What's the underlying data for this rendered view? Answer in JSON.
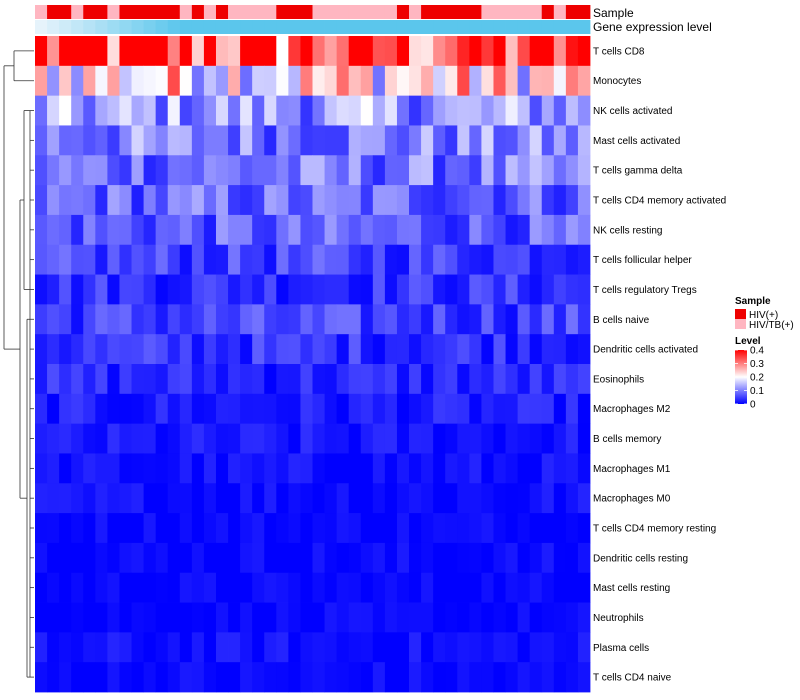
{
  "chart_data": {
    "type": "heatmap",
    "rows": [
      "T cells CD8",
      "Monocytes",
      "NK cells activated",
      "Mast cells activated",
      "T cells gamma delta",
      "T cells CD4 memory activated",
      "NK cells resting",
      "T cells follicular helper",
      "T cells regulatory  Tregs",
      "B cells naive",
      "Dendritic cells activated",
      "Eosinophils",
      "Macrophages M2",
      "B cells memory",
      "Macrophages M1",
      "Macrophages M0",
      "T cells CD4 memory resting",
      "Dendritic cells resting",
      "Mast cells resting",
      "Neutrophils",
      "Plasma cells",
      "T cells CD4 naive"
    ],
    "columns": 46,
    "sample_annotation_values": [
      1,
      0,
      0,
      1,
      0,
      0,
      1,
      0,
      0,
      0,
      0,
      0,
      1,
      0,
      1,
      0,
      1,
      1,
      1,
      1,
      0,
      0,
      0,
      1,
      1,
      1,
      1,
      1,
      1,
      1,
      0,
      1,
      0,
      0,
      0,
      0,
      0,
      1,
      1,
      1,
      1,
      1,
      0,
      1,
      0,
      0
    ],
    "annotation_tracks": [
      "Sample",
      "Gene expression level"
    ],
    "level_row_means": [
      0.37,
      0.22,
      0.12,
      0.1,
      0.09,
      0.08,
      0.07,
      0.05,
      0.04,
      0.05,
      0.04,
      0.03,
      0.02,
      0.015,
      0.01,
      0.01,
      0.005,
      0.005,
      0.003,
      0.002,
      0.01,
      0.005
    ],
    "legend": {
      "sample": {
        "title": "Sample",
        "entries": [
          {
            "label": "HIV(+)",
            "color": "#ee0000"
          },
          {
            "label": "HIV/TB(+)",
            "color": "#ffb6c1"
          }
        ]
      },
      "level": {
        "title": "Level",
        "ticks": [
          {
            "label": "0.4",
            "value": 0.4
          },
          {
            "label": "0.3",
            "value": 0.3
          },
          {
            "label": "0.2",
            "value": 0.2
          },
          {
            "label": "0.1",
            "value": 0.1
          },
          {
            "label": "0",
            "value": 0
          }
        ],
        "range": [
          0,
          0.4
        ]
      }
    },
    "colors": {
      "low": "#0000ff",
      "mid": "#ffffff",
      "high": "#ff0000",
      "expression_bar": "#5bc6ec",
      "expression_bar_light": "#e6f3fb"
    }
  }
}
